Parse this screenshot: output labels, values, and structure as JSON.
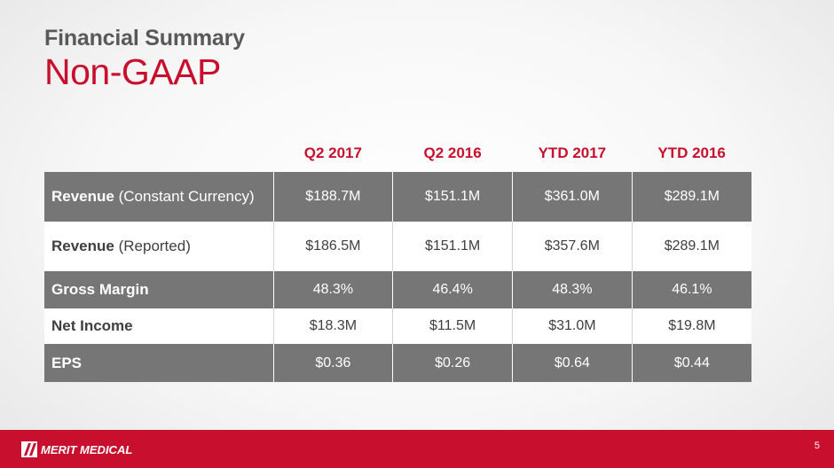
{
  "slide": {
    "title": "Financial Summary",
    "subtitle": "Non-GAAP",
    "page_number": "5"
  },
  "colors": {
    "accent_red": "#c8102e",
    "title_gray": "#595959",
    "row_dark": "#767676",
    "row_light": "#ffffff"
  },
  "table": {
    "headers": [
      "Q2 2017",
      "Q2 2016",
      "YTD 2017",
      "YTD 2016"
    ],
    "rows": [
      {
        "label_bold": "Revenue",
        "label_rest": " (Constant Currency)",
        "values": [
          "$188.7M",
          "$151.1M",
          "$361.0M",
          "$289.1M"
        ]
      },
      {
        "label_bold": "Revenue",
        "label_rest": " (Reported)",
        "values": [
          "$186.5M",
          "$151.1M",
          "$357.6M",
          "$289.1M"
        ]
      },
      {
        "label_bold": "Gross Margin",
        "label_rest": "",
        "values": [
          "48.3%",
          "46.4%",
          "48.3%",
          "46.1%"
        ]
      },
      {
        "label_bold": "Net Income",
        "label_rest": "",
        "values": [
          "$18.3M",
          "$11.5M",
          "$31.0M",
          "$19.8M"
        ]
      },
      {
        "label_bold": "EPS",
        "label_rest": "",
        "values": [
          "$0.36",
          "$0.26",
          "$0.64",
          "$0.44"
        ]
      }
    ]
  },
  "footer": {
    "logo_text": "MERIT MEDICAL"
  }
}
